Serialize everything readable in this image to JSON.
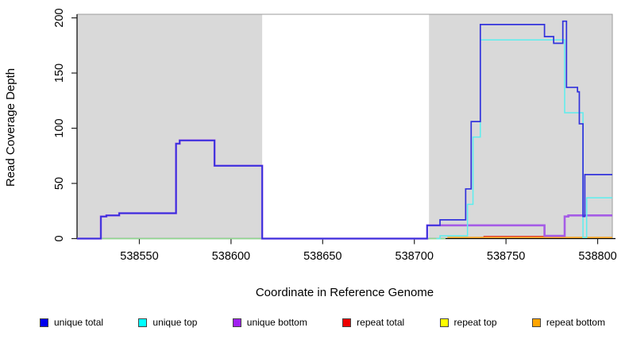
{
  "figure": {
    "title": "",
    "x_axis_label": "Coordinate in Reference Genome",
    "y_axis_label": "Read Coverage Depth"
  },
  "chart_data": {
    "type": "line",
    "subtype": "step-coverage",
    "title": "",
    "xlabel": "Coordinate in Reference Genome",
    "ylabel": "Read Coverage Depth",
    "xlim": [
      538516,
      538808
    ],
    "ylim": [
      0,
      200
    ],
    "x_ticks": [
      538550,
      538600,
      538650,
      538700,
      538750,
      538800
    ],
    "y_ticks": [
      0,
      50,
      100,
      150,
      200
    ],
    "grid": false,
    "legend_position": "bottom",
    "colors": {
      "plot_background_band": "#d9d9d9",
      "frame": "#9b9b9b",
      "axis": "#000000"
    },
    "background_bands": [
      [
        538516,
        538617
      ],
      [
        538708,
        538808
      ]
    ],
    "series": [
      {
        "name": "zero baseline",
        "color": "#8fd98f",
        "width": 1.4,
        "in_legend": false,
        "points": [
          [
            538516,
            0
          ],
          [
            538717,
            0
          ]
        ]
      },
      {
        "name": "repeat top",
        "color": "#ffff00",
        "width": 1.4,
        "in_legend": true,
        "points": []
      },
      {
        "name": "repeat total",
        "color": "#e03c3c",
        "width": 1.4,
        "in_legend": true,
        "points": [
          [
            538736,
            1
          ],
          [
            538738,
            2
          ],
          [
            538770,
            2
          ],
          [
            538771,
            1
          ]
        ]
      },
      {
        "name": "repeat bottom",
        "color": "#ffa51e",
        "width": 1.6,
        "in_legend": true,
        "points": [
          [
            538718,
            1
          ],
          [
            538808,
            1
          ]
        ]
      },
      {
        "name": "unique bottom",
        "color": "#a55ce6",
        "width": 2.6,
        "in_legend": true,
        "points": [
          [
            538516,
            0
          ],
          [
            538529,
            20
          ],
          [
            538532,
            21
          ],
          [
            538539,
            23
          ],
          [
            538570,
            86
          ],
          [
            538572,
            89
          ],
          [
            538591,
            66
          ],
          [
            538617,
            0
          ],
          [
            538707,
            12
          ],
          [
            538771,
            2.5
          ],
          [
            538782,
            20
          ],
          [
            538784,
            21
          ],
          [
            538808,
            21
          ]
        ]
      },
      {
        "name": "unique top",
        "color": "#5ceeee",
        "width": 1.5,
        "in_legend": true,
        "points": [
          [
            538712,
            0
          ],
          [
            538714,
            2.5
          ],
          [
            538729,
            31
          ],
          [
            538732,
            92
          ],
          [
            538736,
            180
          ],
          [
            538782,
            114
          ],
          [
            538792,
            1
          ],
          [
            538794,
            37
          ],
          [
            538808,
            37
          ]
        ]
      },
      {
        "name": "unique total",
        "color": "#3232dc",
        "width": 1.7,
        "in_legend": true,
        "points": [
          [
            538516,
            0
          ],
          [
            538529,
            20
          ],
          [
            538532,
            21
          ],
          [
            538539,
            23
          ],
          [
            538570,
            86
          ],
          [
            538572,
            89
          ],
          [
            538591,
            66
          ],
          [
            538617,
            0
          ],
          [
            538707,
            12
          ],
          [
            538714,
            17
          ],
          [
            538728,
            45
          ],
          [
            538731,
            106
          ],
          [
            538736,
            194
          ],
          [
            538771,
            183
          ],
          [
            538776,
            177
          ],
          [
            538781,
            197
          ],
          [
            538783,
            137
          ],
          [
            538789,
            133
          ],
          [
            538790,
            104
          ],
          [
            538792,
            20
          ],
          [
            538793,
            58
          ],
          [
            538808,
            58
          ]
        ]
      }
    ],
    "legend": [
      {
        "label": "unique total",
        "color": "#0000ee"
      },
      {
        "label": "unique top",
        "color": "#00ffff"
      },
      {
        "label": "unique bottom",
        "color": "#a020f0"
      },
      {
        "label": "repeat total",
        "color": "#ee0000"
      },
      {
        "label": "repeat top",
        "color": "#ffff00"
      },
      {
        "label": "repeat bottom",
        "color": "#ffa500"
      }
    ]
  }
}
